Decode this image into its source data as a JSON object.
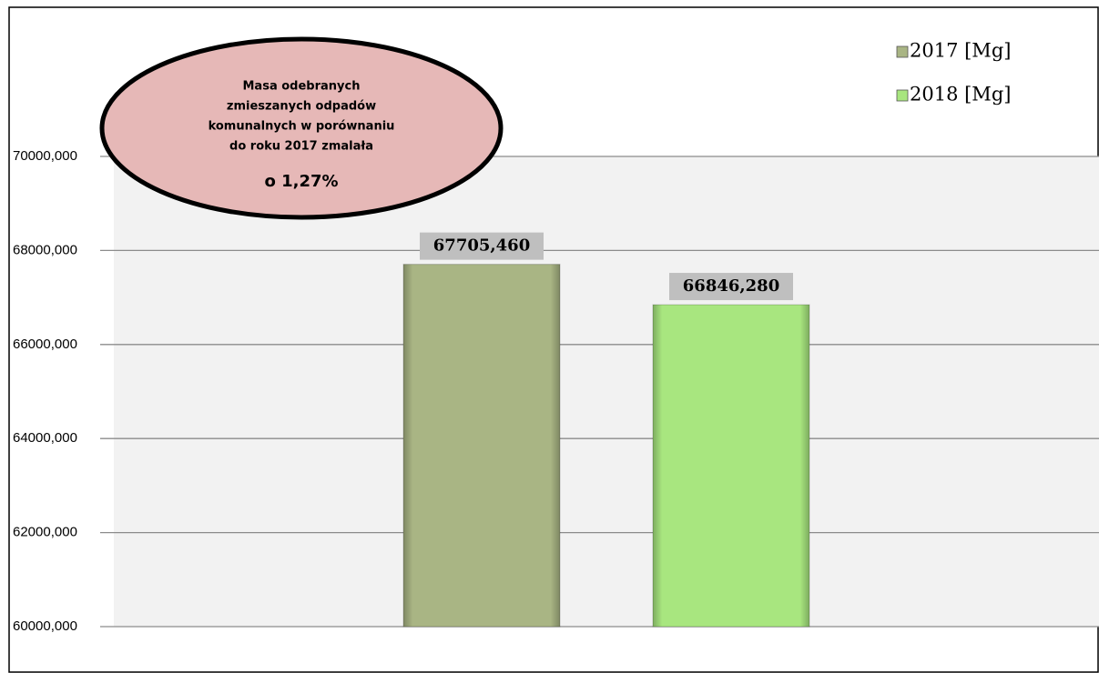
{
  "chart_data": {
    "type": "bar",
    "categories": [
      null
    ],
    "series": [
      {
        "name": "2017 [Mg]",
        "color": "#a9b584",
        "values": [
          67705.46
        ],
        "value_labels": [
          "67705,460"
        ]
      },
      {
        "name": "2018 [Mg]",
        "color": "#a8e67f",
        "values": [
          66846.28
        ],
        "value_labels": [
          "66846,280"
        ]
      }
    ],
    "ylim": [
      60000,
      70000
    ],
    "yticks": [
      {
        "value": 60000,
        "label": "60000,000"
      },
      {
        "value": 62000,
        "label": "62000,000"
      },
      {
        "value": 64000,
        "label": "64000,000"
      },
      {
        "value": 66000,
        "label": "66000,000"
      },
      {
        "value": 68000,
        "label": "68000,000"
      },
      {
        "value": 70000,
        "label": "70000,000"
      }
    ],
    "grid": true,
    "legend": "top-right",
    "annotation": {
      "lines": [
        "Masa odebranych",
        "zmieszanych odpadów",
        "komunalnych w porównaniu",
        "do roku 2017 zmalała"
      ],
      "emphasis": "o 1,27%"
    }
  }
}
